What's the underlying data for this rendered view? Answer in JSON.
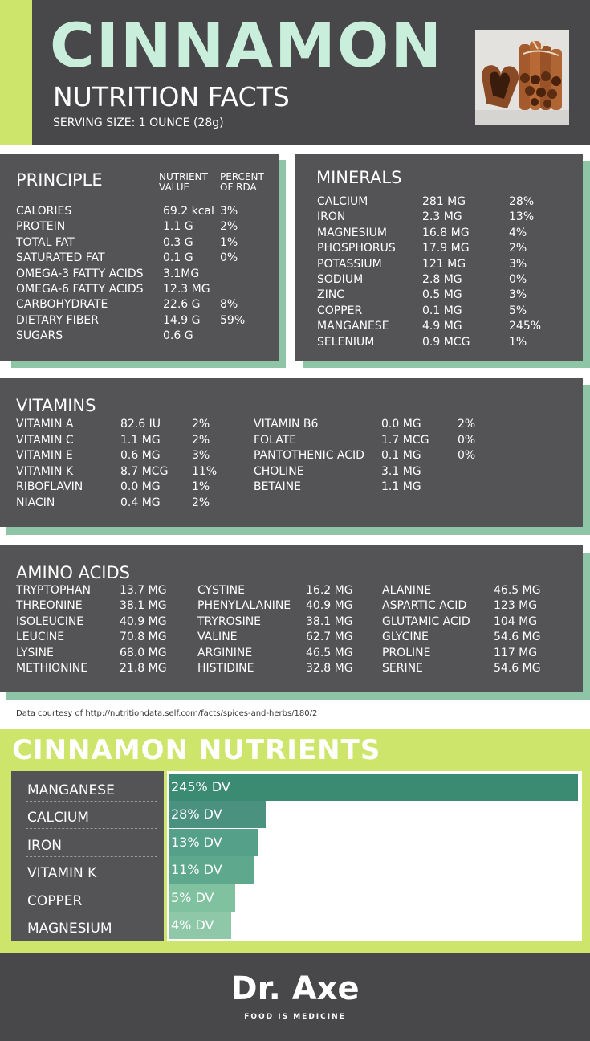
{
  "header": {
    "title": "CINNAMON",
    "subtitle": "NUTRITION FACTS",
    "serving": "SERVING SIZE: 1 OUNCE (28g)"
  },
  "principle": {
    "heading": "PRINCIPLE",
    "col1": [
      "NUTRIENT",
      "VALUE"
    ],
    "col2": [
      "PERCENT",
      "OF RDA"
    ],
    "rows": [
      [
        "CALORIES",
        "69.2 kcal",
        "3%"
      ],
      [
        "PROTEIN",
        "1.1 G",
        "2%"
      ],
      [
        "TOTAL FAT",
        "0.3 G",
        "1%"
      ],
      [
        "SATURATED FAT",
        "0.1 G",
        "0%"
      ],
      [
        "OMEGA-3 FATTY ACIDS",
        "3.1MG",
        ""
      ],
      [
        "OMEGA-6 FATTY ACIDS",
        "12.3 MG",
        ""
      ],
      [
        "CARBOHYDRATE",
        "22.6 G",
        "8%"
      ],
      [
        "DIETARY FIBER",
        "14.9 G",
        "59%"
      ],
      [
        "SUGARS",
        "0.6 G",
        ""
      ]
    ]
  },
  "minerals": {
    "heading": "MINERALS",
    "rows": [
      [
        "CALCIUM",
        "281 MG",
        "28%"
      ],
      [
        "IRON",
        "2.3 MG",
        "13%"
      ],
      [
        "MAGNESIUM",
        "16.8 MG",
        "4%"
      ],
      [
        "PHOSPHORUS",
        "17.9 MG",
        "2%"
      ],
      [
        "POTASSIUM",
        "121 MG",
        "3%"
      ],
      [
        "SODIUM",
        "2.8 MG",
        "0%"
      ],
      [
        "ZINC",
        "0.5 MG",
        "3%"
      ],
      [
        "COPPER",
        "0.1 MG",
        "5%"
      ],
      [
        "MANGANESE",
        "4.9 MG",
        "245%"
      ],
      [
        "SELENIUM",
        "0.9 MCG",
        "1%"
      ]
    ]
  },
  "vitamins": {
    "heading": "VITAMINS",
    "left": [
      [
        "VITAMIN A",
        "82.6 IU",
        "2%"
      ],
      [
        "VITAMIN C",
        "1.1 MG",
        "2%"
      ],
      [
        "VITAMIN E",
        "0.6 MG",
        "3%"
      ],
      [
        "VITAMIN K",
        "8.7 MCG",
        "11%"
      ],
      [
        "RIBOFLAVIN",
        "0.0 MG",
        "1%"
      ],
      [
        "NIACIN",
        "0.4 MG",
        "2%"
      ]
    ],
    "right": [
      [
        "VITAMIN B6",
        "0.0 MG",
        "2%"
      ],
      [
        "FOLATE",
        "1.7 MCG",
        "0%"
      ],
      [
        "PANTOTHENIC ACID",
        "0.1 MG",
        "0%"
      ],
      [
        "CHOLINE",
        "3.1 MG",
        ""
      ],
      [
        "BETAINE",
        "1.1 MG",
        ""
      ]
    ]
  },
  "amino": {
    "heading": "AMINO ACIDS",
    "c1": [
      [
        "TRYPTOPHAN",
        "13.7 MG"
      ],
      [
        "THREONINE",
        "38.1 MG"
      ],
      [
        "ISOLEUCINE",
        "40.9 MG"
      ],
      [
        "LEUCINE",
        "70.8 MG"
      ],
      [
        "LYSINE",
        "68.0 MG"
      ],
      [
        "METHIONINE",
        "21.8 MG"
      ]
    ],
    "c2": [
      [
        "CYSTINE",
        "16.2 MG"
      ],
      [
        "PHENYLALANINE",
        "40.9 MG"
      ],
      [
        "TRYROSINE",
        "38.1 MG"
      ],
      [
        "VALINE",
        "62.7 MG"
      ],
      [
        "ARGININE",
        "46.5 MG"
      ],
      [
        "HISTIDINE",
        "32.8 MG"
      ]
    ],
    "c3": [
      [
        "ALANINE",
        "46.5 MG"
      ],
      [
        "ASPARTIC ACID",
        "123 MG"
      ],
      [
        "GLUTAMIC ACID",
        "104 MG"
      ],
      [
        "GLYCINE",
        "54.6 MG"
      ],
      [
        "PROLINE",
        "117 MG"
      ],
      [
        "SERINE",
        "54.6 MG"
      ]
    ]
  },
  "source_note": "Data courtesy of http://nutritiondata.self.com/facts/spices-and-herbs/180/2",
  "chart_data": {
    "type": "bar",
    "orientation": "horizontal",
    "title": "CINNAMON NUTRIENTS",
    "categories": [
      "MANGANESE",
      "CALCIUM",
      "IRON",
      "VITAMIN K",
      "COPPER",
      "MAGNESIUM"
    ],
    "values": [
      245,
      28,
      13,
      11,
      5,
      4
    ],
    "value_labels": [
      "245% DV",
      "28% DV",
      "13% DV",
      "11% DV",
      "5% DV",
      "4% DV"
    ],
    "colors": [
      "#3b8a72",
      "#4a9180",
      "#55a088",
      "#5ea98d",
      "#80c2a0",
      "#8ec8a8"
    ]
  },
  "brand": {
    "name": "Dr. Axe",
    "tagline": "FOOD IS MEDICINE"
  },
  "colors": {
    "dark": "#48484a",
    "card": "#545456",
    "accent_lime": "#cde56a",
    "accent_mint": "#c9eedb",
    "shadow_green": "#8fc5a7"
  }
}
